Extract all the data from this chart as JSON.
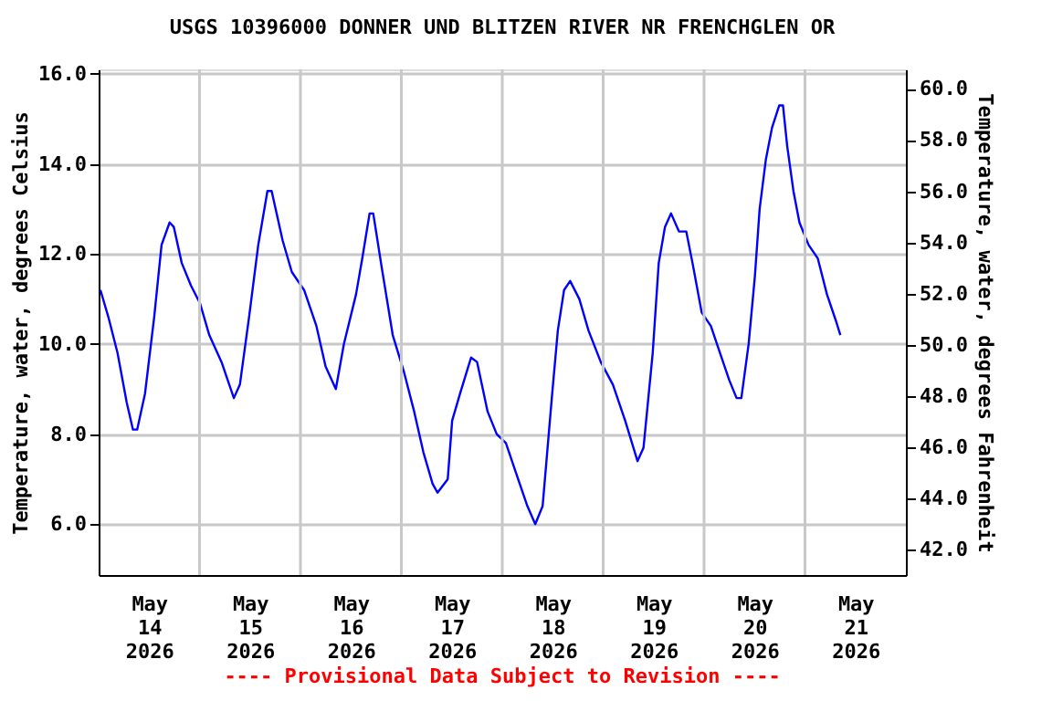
{
  "chart_data": {
    "type": "line",
    "title": "USGS 10396000 DONNER UND BLITZEN RIVER NR FRENCHGLEN OR",
    "ylabel": "Temperature, water, degrees Celsius",
    "y2label": "Temperature, water, degrees Fahrenheit",
    "annotations": [
      "---- Provisional Data Subject to Revision ----"
    ],
    "x": [
      "2026-05-14T00:26",
      "2026-05-14T02:19",
      "2026-05-14T04:30",
      "2026-05-14T06:41",
      "2026-05-14T08:10",
      "2026-05-14T09:10",
      "2026-05-14T11:02",
      "2026-05-14T13:13",
      "2026-05-14T14:58",
      "2026-05-14T16:53",
      "2026-05-14T17:53",
      "2026-05-14T19:46",
      "2026-05-14T21:57",
      "2026-05-15T00:08",
      "2026-05-15T02:19",
      "2026-05-15T05:14",
      "2026-05-15T08:10",
      "2026-05-15T09:36",
      "2026-05-15T11:47",
      "2026-05-15T13:58",
      "2026-05-15T16:09",
      "2026-05-15T17:09",
      "2026-05-15T19:46",
      "2026-05-15T21:57",
      "2026-05-16T00:52",
      "2026-05-16T03:48",
      "2026-05-16T05:59",
      "2026-05-16T08:25",
      "2026-05-16T10:20",
      "2026-05-16T13:13",
      "2026-05-16T14:42",
      "2026-05-16T16:27",
      "2026-05-16T17:19",
      "2026-05-16T19:20",
      "2026-05-16T21:57",
      "2026-05-17T00:34",
      "2026-05-17T03:03",
      "2026-05-17T05:14",
      "2026-05-17T07:25",
      "2026-05-17T08:36",
      "2026-05-17T11:02",
      "2026-05-17T12:05",
      "2026-05-17T13:58",
      "2026-05-17T16:35",
      "2026-05-17T18:01",
      "2026-05-17T20:31",
      "2026-05-17T22:41",
      "2026-05-18T00:52",
      "2026-05-18T03:03",
      "2026-05-18T05:59",
      "2026-05-18T07:51",
      "2026-05-18T09:36",
      "2026-05-18T11:47",
      "2026-05-18T13:13",
      "2026-05-18T14:42",
      "2026-05-18T16:09",
      "2026-05-18T18:20",
      "2026-05-18T20:31",
      "2026-05-18T23:26",
      "2026-05-19T02:19",
      "2026-05-19T05:14",
      "2026-05-19T08:10",
      "2026-05-19T09:36",
      "2026-05-19T11:47",
      "2026-05-19T13:13",
      "2026-05-19T14:42",
      "2026-05-19T16:09",
      "2026-05-19T18:01",
      "2026-05-19T19:46",
      "2026-05-19T21:15",
      "2026-05-19T23:26",
      "2026-05-20T01:37",
      "2026-05-20T03:48",
      "2026-05-20T05:59",
      "2026-05-20T07:44",
      "2026-05-20T08:52",
      "2026-05-20T10:36",
      "2026-05-20T12:05",
      "2026-05-20T13:13",
      "2026-05-20T14:42",
      "2026-05-20T16:09",
      "2026-05-20T17:53",
      "2026-05-20T18:46",
      "2026-05-20T19:46",
      "2026-05-20T21:15",
      "2026-05-20T22:41",
      "2026-05-21T00:52",
      "2026-05-21T03:03",
      "2026-05-21T05:14",
      "2026-05-21T07:25",
      "2026-05-21T08:25"
    ],
    "series": [
      {
        "color": "#0000ff",
        "values": [
          11.2,
          10.6,
          9.8,
          8.7,
          8.1,
          8.1,
          8.9,
          10.6,
          12.2,
          12.7,
          12.6,
          11.8,
          11.3,
          10.9,
          10.2,
          9.6,
          8.8,
          9.1,
          10.6,
          12.2,
          13.4,
          13.4,
          12.3,
          11.6,
          11.2,
          10.4,
          9.5,
          9.0,
          10.0,
          11.1,
          11.9,
          12.9,
          12.9,
          11.7,
          10.2,
          9.4,
          8.5,
          7.6,
          6.9,
          6.7,
          7.0,
          8.3,
          8.9,
          9.7,
          9.6,
          8.5,
          8.0,
          7.8,
          7.2,
          6.4,
          6.0,
          6.4,
          8.8,
          10.3,
          11.2,
          11.4,
          11.0,
          10.3,
          9.6,
          9.1,
          8.3,
          7.4,
          7.7,
          9.8,
          11.8,
          12.6,
          12.9,
          12.5,
          12.5,
          11.8,
          10.7,
          10.4,
          9.8,
          9.2,
          8.8,
          8.8,
          10.0,
          11.5,
          13.0,
          14.1,
          14.8,
          15.3,
          15.3,
          14.4,
          13.4,
          12.7,
          12.2,
          11.9,
          11.1,
          10.5,
          10.2
        ]
      }
    ],
    "xlim": [
      "2026-05-14T00:00",
      "2026-05-22T00:00"
    ],
    "xticks": [
      {
        "value": "2026-05-14T12:00",
        "label": "May 14 2026"
      },
      {
        "value": "2026-05-15T00:00",
        "label": null
      },
      {
        "value": "2026-05-15T12:00",
        "label": "May 15 2026"
      },
      {
        "value": "2026-05-16T00:00",
        "label": null
      },
      {
        "value": "2026-05-16T12:00",
        "label": "May 16 2026"
      },
      {
        "value": "2026-05-17T00:00",
        "label": null
      },
      {
        "value": "2026-05-17T12:00",
        "label": "May 17 2026"
      },
      {
        "value": "2026-05-18T00:00",
        "label": null
      },
      {
        "value": "2026-05-18T12:00",
        "label": "May 18 2026"
      },
      {
        "value": "2026-05-19T00:00",
        "label": null
      },
      {
        "value": "2026-05-19T12:00",
        "label": "May 19 2026"
      },
      {
        "value": "2026-05-20T00:00",
        "label": null
      },
      {
        "value": "2026-05-20T12:00",
        "label": "May 20 2026"
      },
      {
        "value": "2026-05-21T00:00",
        "label": null
      },
      {
        "value": "2026-05-21T12:00",
        "label": "May 21 2026"
      }
    ],
    "ylim": [
      4.87,
      16.1
    ],
    "yticks": [
      {
        "value": 6,
        "label": "6.0"
      },
      {
        "value": 8,
        "label": "8.0"
      },
      {
        "value": 10,
        "label": "10.0"
      },
      {
        "value": 12,
        "label": "12.0"
      },
      {
        "value": 14,
        "label": "14.0"
      },
      {
        "value": 16,
        "label": "16.0"
      }
    ],
    "y2lim": [
      41.02,
      60.76
    ],
    "y2ticks": [
      {
        "value": 42,
        "label": "42.0"
      },
      {
        "value": 44,
        "label": "44.0"
      },
      {
        "value": 46,
        "label": "46.0"
      },
      {
        "value": 48,
        "label": "48.0"
      },
      {
        "value": 50,
        "label": "50.0"
      },
      {
        "value": 52,
        "label": "52.0"
      },
      {
        "value": 54,
        "label": "54.0"
      },
      {
        "value": 56,
        "label": "56.0"
      },
      {
        "value": 58,
        "label": "58.0"
      },
      {
        "value": 60,
        "label": "60.0"
      }
    ],
    "grid": true
  }
}
